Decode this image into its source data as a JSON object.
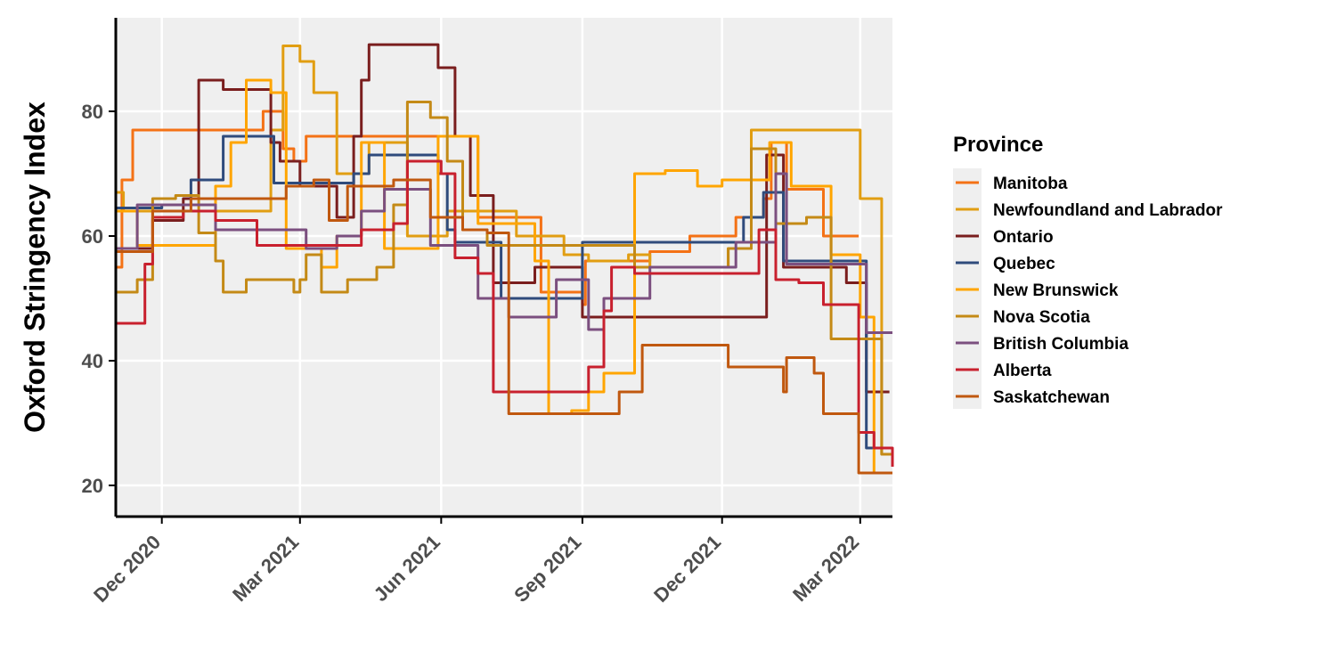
{
  "chart_data": {
    "type": "line",
    "title": "",
    "xlabel": "",
    "ylabel": "Oxford Stringency Index",
    "x_ticks": [
      {
        "date": "2020-12-01",
        "label": "Dec 2020"
      },
      {
        "date": "2021-03-01",
        "label": "Mar 2021"
      },
      {
        "date": "2021-06-01",
        "label": "Jun 2021"
      },
      {
        "date": "2021-09-01",
        "label": "Sep 2021"
      },
      {
        "date": "2021-12-01",
        "label": "Dec 2021"
      },
      {
        "date": "2022-03-01",
        "label": "Mar 2022"
      }
    ],
    "xlim": [
      "2020-11-01",
      "2022-03-22"
    ],
    "y_ticks": [
      20,
      40,
      60,
      80
    ],
    "ylim": [
      15,
      95
    ],
    "grid": true,
    "legend": {
      "title": "Province",
      "position": "right"
    },
    "series": [
      {
        "name": "Manitoba",
        "color": "#F47216",
        "points": [
          [
            "2020-11-01",
            55
          ],
          [
            "2020-11-05",
            69
          ],
          [
            "2020-11-12",
            77
          ],
          [
            "2021-02-05",
            80
          ],
          [
            "2021-02-18",
            74
          ],
          [
            "2021-02-25",
            72
          ],
          [
            "2021-03-05",
            76
          ],
          [
            "2021-06-25",
            63
          ],
          [
            "2021-08-05",
            51
          ],
          [
            "2021-09-01",
            49
          ],
          [
            "2021-09-03",
            56
          ],
          [
            "2021-10-15",
            57.5
          ],
          [
            "2021-11-10",
            60
          ],
          [
            "2021-12-10",
            63
          ],
          [
            "2021-12-28",
            66
          ],
          [
            "2022-01-02",
            75
          ],
          [
            "2022-01-12",
            67.5
          ],
          [
            "2022-02-05",
            60
          ],
          [
            "2022-02-28",
            60
          ]
        ]
      },
      {
        "name": "Newfoundland and Labrador",
        "color": "#E19E12",
        "points": [
          [
            "2020-11-01",
            67
          ],
          [
            "2020-11-06",
            64
          ],
          [
            "2020-12-01",
            64
          ],
          [
            "2021-01-05",
            64
          ],
          [
            "2021-02-10",
            77
          ],
          [
            "2021-02-18",
            90.5
          ],
          [
            "2021-03-01",
            88
          ],
          [
            "2021-03-10",
            83
          ],
          [
            "2021-03-25",
            70
          ],
          [
            "2021-04-15",
            75
          ],
          [
            "2021-05-10",
            60
          ],
          [
            "2021-06-05",
            64
          ],
          [
            "2021-07-20",
            60
          ],
          [
            "2021-08-20",
            57
          ],
          [
            "2021-09-05",
            56
          ],
          [
            "2021-09-15",
            56
          ],
          [
            "2021-10-01",
            57
          ],
          [
            "2021-10-15",
            55
          ],
          [
            "2021-11-15",
            55
          ],
          [
            "2021-12-05",
            58
          ],
          [
            "2021-12-20",
            77
          ],
          [
            "2022-01-15",
            77
          ],
          [
            "2022-03-01",
            66
          ],
          [
            "2022-03-10",
            66
          ],
          [
            "2022-03-15",
            25
          ],
          [
            "2022-03-22",
            25
          ]
        ]
      },
      {
        "name": "Ontario",
        "color": "#7A1E1E",
        "points": [
          [
            "2020-11-01",
            58
          ],
          [
            "2020-11-25",
            62.5
          ],
          [
            "2020-12-15",
            66
          ],
          [
            "2020-12-25",
            85
          ],
          [
            "2021-01-10",
            83.5
          ],
          [
            "2021-02-10",
            75
          ],
          [
            "2021-02-16",
            72
          ],
          [
            "2021-03-01",
            68
          ],
          [
            "2021-03-15",
            68
          ],
          [
            "2021-03-25",
            63
          ],
          [
            "2021-04-05",
            76
          ],
          [
            "2021-04-10",
            85
          ],
          [
            "2021-04-15",
            90.7
          ],
          [
            "2021-05-30",
            87
          ],
          [
            "2021-06-10",
            76
          ],
          [
            "2021-06-20",
            66.5
          ],
          [
            "2021-07-05",
            52.5
          ],
          [
            "2021-08-01",
            55
          ],
          [
            "2021-09-01",
            47
          ],
          [
            "2021-12-01",
            47
          ],
          [
            "2021-12-15",
            47
          ],
          [
            "2021-12-30",
            73
          ],
          [
            "2022-01-10",
            55
          ],
          [
            "2022-01-25",
            55
          ],
          [
            "2022-02-20",
            52.5
          ],
          [
            "2022-03-05",
            35
          ],
          [
            "2022-03-20",
            35
          ]
        ]
      },
      {
        "name": "Quebec",
        "color": "#2F4B7C",
        "points": [
          [
            "2020-11-01",
            64.5
          ],
          [
            "2020-12-01",
            65
          ],
          [
            "2020-12-20",
            69
          ],
          [
            "2021-01-10",
            76
          ],
          [
            "2021-02-05",
            76
          ],
          [
            "2021-02-12",
            68.5
          ],
          [
            "2021-04-05",
            70
          ],
          [
            "2021-04-15",
            73
          ],
          [
            "2021-05-30",
            70
          ],
          [
            "2021-06-05",
            61
          ],
          [
            "2021-06-10",
            59
          ],
          [
            "2021-06-25",
            59
          ],
          [
            "2021-07-10",
            50
          ],
          [
            "2021-09-01",
            59
          ],
          [
            "2021-11-15",
            59
          ],
          [
            "2021-12-15",
            63
          ],
          [
            "2021-12-28",
            67
          ],
          [
            "2022-01-10",
            56
          ],
          [
            "2022-02-25",
            56
          ],
          [
            "2022-03-05",
            26
          ],
          [
            "2022-03-20",
            26
          ]
        ]
      },
      {
        "name": "New Brunswick",
        "color": "#FFA500",
        "points": [
          [
            "2020-11-01",
            64
          ],
          [
            "2020-11-15",
            58.5
          ],
          [
            "2020-12-20",
            58.5
          ],
          [
            "2021-01-05",
            68
          ],
          [
            "2021-01-15",
            75
          ],
          [
            "2021-01-25",
            85
          ],
          [
            "2021-02-10",
            83
          ],
          [
            "2021-02-20",
            58
          ],
          [
            "2021-03-15",
            55
          ],
          [
            "2021-03-25",
            60
          ],
          [
            "2021-04-10",
            75
          ],
          [
            "2021-04-25",
            58
          ],
          [
            "2021-05-30",
            76
          ],
          [
            "2021-06-25",
            62
          ],
          [
            "2021-07-15",
            62
          ],
          [
            "2021-08-01",
            56
          ],
          [
            "2021-08-10",
            31.5
          ],
          [
            "2021-08-25",
            32
          ],
          [
            "2021-09-05",
            35
          ],
          [
            "2021-09-15",
            38
          ],
          [
            "2021-10-05",
            70
          ],
          [
            "2021-10-25",
            70.5
          ],
          [
            "2021-11-15",
            68
          ],
          [
            "2021-12-01",
            69
          ],
          [
            "2021-12-20",
            69
          ],
          [
            "2022-01-01",
            75
          ],
          [
            "2022-01-15",
            68
          ],
          [
            "2022-02-10",
            57
          ],
          [
            "2022-03-01",
            47
          ],
          [
            "2022-03-10",
            22
          ],
          [
            "2022-03-22",
            22
          ]
        ]
      },
      {
        "name": "Nova Scotia",
        "color": "#C48A16",
        "points": [
          [
            "2020-11-01",
            51
          ],
          [
            "2020-11-15",
            53
          ],
          [
            "2020-11-25",
            66
          ],
          [
            "2020-12-10",
            66.5
          ],
          [
            "2020-12-25",
            60.5
          ],
          [
            "2021-01-05",
            56
          ],
          [
            "2021-01-10",
            51
          ],
          [
            "2021-01-25",
            53
          ],
          [
            "2021-02-25",
            51
          ],
          [
            "2021-03-01",
            53
          ],
          [
            "2021-03-05",
            57
          ],
          [
            "2021-03-15",
            51
          ],
          [
            "2021-04-01",
            53
          ],
          [
            "2021-04-20",
            55
          ],
          [
            "2021-05-01",
            65
          ],
          [
            "2021-05-10",
            81.5
          ],
          [
            "2021-05-25",
            79
          ],
          [
            "2021-06-05",
            72
          ],
          [
            "2021-06-15",
            61
          ],
          [
            "2021-07-01",
            58.5
          ],
          [
            "2021-09-10",
            58.5
          ],
          [
            "2021-10-05",
            55
          ],
          [
            "2021-11-25",
            55
          ],
          [
            "2021-12-05",
            58
          ],
          [
            "2021-12-20",
            74
          ],
          [
            "2022-01-05",
            62
          ],
          [
            "2022-01-25",
            63
          ],
          [
            "2022-02-10",
            43.5
          ],
          [
            "2022-03-05",
            43.5
          ],
          [
            "2022-03-15",
            25
          ],
          [
            "2022-03-22",
            25
          ]
        ]
      },
      {
        "name": "British Columbia",
        "color": "#7B4F7F",
        "points": [
          [
            "2020-11-01",
            58
          ],
          [
            "2020-11-15",
            65
          ],
          [
            "2020-12-01",
            65
          ],
          [
            "2021-01-05",
            61
          ],
          [
            "2021-01-25",
            61
          ],
          [
            "2021-02-15",
            61
          ],
          [
            "2021-03-05",
            58
          ],
          [
            "2021-03-25",
            60
          ],
          [
            "2021-04-10",
            64
          ],
          [
            "2021-04-25",
            67.5
          ],
          [
            "2021-05-25",
            58.5
          ],
          [
            "2021-06-15",
            58.5
          ],
          [
            "2021-06-25",
            50
          ],
          [
            "2021-07-15",
            47
          ],
          [
            "2021-08-15",
            53
          ],
          [
            "2021-09-05",
            45
          ],
          [
            "2021-09-15",
            50
          ],
          [
            "2021-10-15",
            55
          ],
          [
            "2021-12-10",
            59
          ],
          [
            "2021-12-25",
            59
          ],
          [
            "2022-01-05",
            70
          ],
          [
            "2022-01-12",
            55.5
          ],
          [
            "2022-02-25",
            55.5
          ],
          [
            "2022-03-05",
            44.5
          ],
          [
            "2022-03-22",
            44.5
          ]
        ]
      },
      {
        "name": "Alberta",
        "color": "#C8202E",
        "points": [
          [
            "2020-11-01",
            46
          ],
          [
            "2020-11-20",
            55.5
          ],
          [
            "2020-11-25",
            63
          ],
          [
            "2020-12-15",
            64
          ],
          [
            "2021-01-05",
            62.5
          ],
          [
            "2021-02-01",
            58.5
          ],
          [
            "2021-03-15",
            58.5
          ],
          [
            "2021-04-10",
            61
          ],
          [
            "2021-05-01",
            62
          ],
          [
            "2021-05-10",
            72
          ],
          [
            "2021-06-01",
            70
          ],
          [
            "2021-06-10",
            56.5
          ],
          [
            "2021-06-25",
            54
          ],
          [
            "2021-07-05",
            35
          ],
          [
            "2021-08-20",
            35
          ],
          [
            "2021-09-05",
            39
          ],
          [
            "2021-09-15",
            48
          ],
          [
            "2021-09-20",
            55
          ],
          [
            "2021-10-05",
            54
          ],
          [
            "2021-11-15",
            54
          ],
          [
            "2021-12-25",
            61
          ],
          [
            "2022-01-05",
            53
          ],
          [
            "2022-01-20",
            52.5
          ],
          [
            "2022-02-05",
            49
          ],
          [
            "2022-02-28",
            28.5
          ],
          [
            "2022-03-10",
            26
          ],
          [
            "2022-03-22",
            23
          ]
        ]
      },
      {
        "name": "Saskatchewan",
        "color": "#C0580F",
        "points": [
          [
            "2020-11-01",
            57.5
          ],
          [
            "2020-11-25",
            64
          ],
          [
            "2020-12-20",
            66
          ],
          [
            "2021-02-01",
            66
          ],
          [
            "2021-02-20",
            68
          ],
          [
            "2021-03-10",
            69
          ],
          [
            "2021-03-20",
            62.5
          ],
          [
            "2021-04-01",
            68
          ],
          [
            "2021-05-01",
            69
          ],
          [
            "2021-05-25",
            63
          ],
          [
            "2021-06-15",
            61
          ],
          [
            "2021-07-01",
            60.5
          ],
          [
            "2021-07-15",
            31.5
          ],
          [
            "2021-09-15",
            31.5
          ],
          [
            "2021-09-25",
            35
          ],
          [
            "2021-10-10",
            42.5
          ],
          [
            "2021-11-25",
            42.5
          ],
          [
            "2021-12-05",
            39
          ],
          [
            "2022-01-05",
            39
          ],
          [
            "2022-01-10",
            35
          ],
          [
            "2022-01-12",
            40.5
          ],
          [
            "2022-01-30",
            38
          ],
          [
            "2022-02-05",
            31.5
          ],
          [
            "2022-02-28",
            22
          ],
          [
            "2022-03-22",
            22
          ]
        ]
      }
    ]
  }
}
